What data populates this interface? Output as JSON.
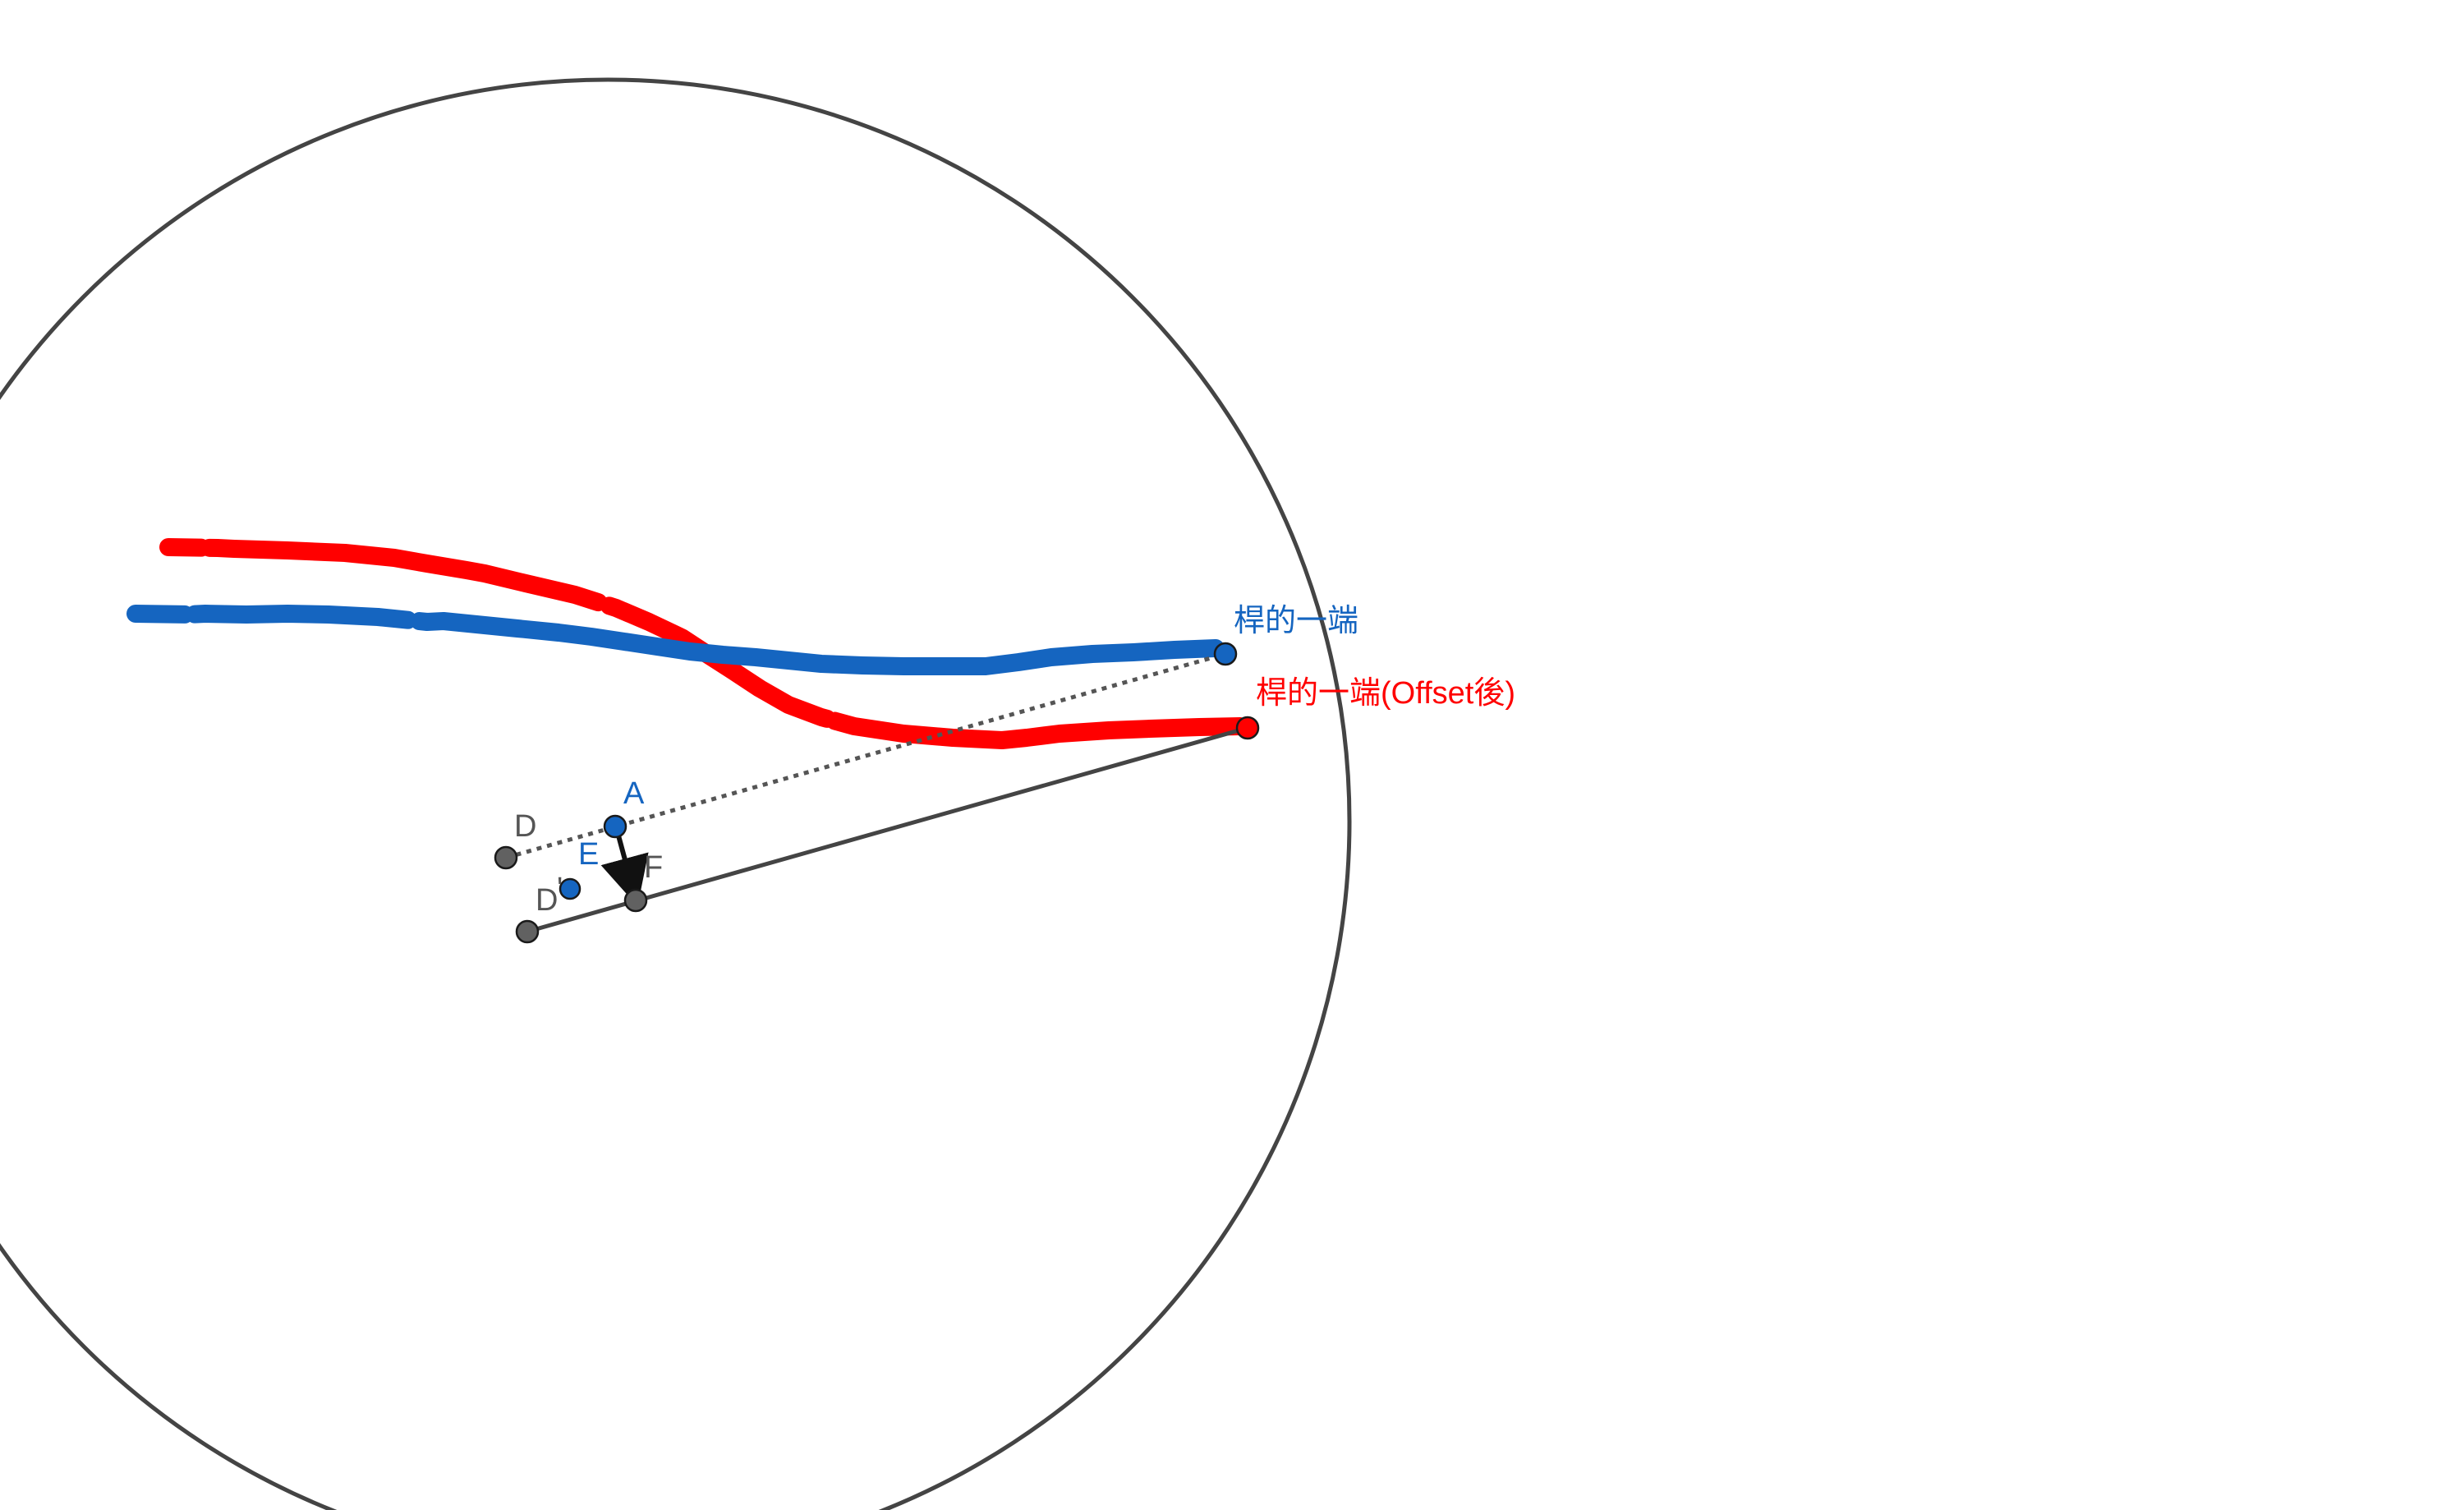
{
  "diagram": {
    "labels": {
      "rod_end": "桿的一端",
      "rod_end_offset": "桿的一端(Offset後)",
      "point_a": "A",
      "point_d_upper": "D",
      "point_d_lower": "D",
      "point_d_prime_mark": "'",
      "point_e": "E",
      "point_f": "F"
    },
    "colors": {
      "trace_blue": "#1565c0",
      "trace_red": "#ff0000",
      "line_grey": "#444444",
      "point_grey": "#616161",
      "label_grey": "#555555"
    },
    "icons": {
      "arrow": "vector-arrow-icon"
    }
  }
}
